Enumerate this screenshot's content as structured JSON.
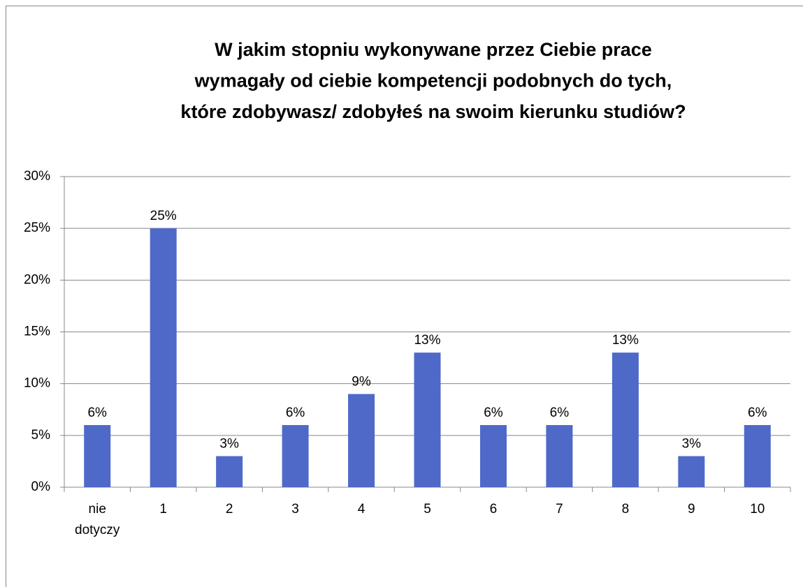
{
  "chart_data": {
    "type": "bar",
    "title": [
      "W jakim stopniu wykonywane przez Ciebie prace",
      "wymagały od ciebie kompetencji podobnych do tych,",
      "które zdobywasz/ zdobyłeś na swoim kierunku studiów?"
    ],
    "categories": [
      "nie dotyczy",
      "1",
      "2",
      "3",
      "4",
      "5",
      "6",
      "7",
      "8",
      "9",
      "10"
    ],
    "values": [
      6,
      25,
      3,
      6,
      9,
      13,
      6,
      6,
      13,
      3,
      6
    ],
    "value_labels": [
      "6%",
      "25%",
      "3%",
      "6%",
      "9%",
      "13%",
      "6%",
      "6%",
      "13%",
      "3%",
      "6%"
    ],
    "color": "#4f69c9",
    "ylim": [
      0,
      30
    ],
    "yticks": [
      {
        "value": 0,
        "label": "0%"
      },
      {
        "value": 5,
        "label": "5%"
      },
      {
        "value": 10,
        "label": "10%"
      },
      {
        "value": 15,
        "label": "15%"
      },
      {
        "value": 20,
        "label": "20%"
      },
      {
        "value": 25,
        "label": "25%"
      },
      {
        "value": 30,
        "label": "30%"
      }
    ],
    "grid": true
  }
}
